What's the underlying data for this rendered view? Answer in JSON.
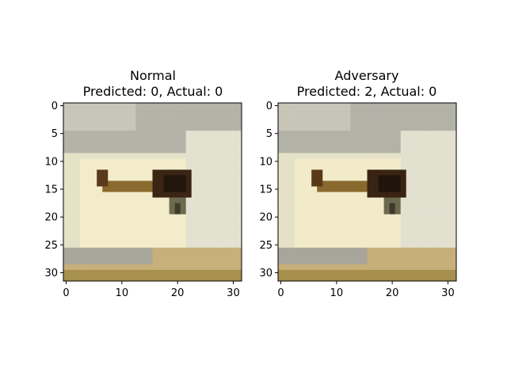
{
  "chart_data": [
    {
      "type": "heatmap",
      "title": "Normal",
      "subtitle": "Predicted: 0, Actual: 0",
      "image_size": 32,
      "xticks": [
        0,
        10,
        20,
        30
      ],
      "yticks": [
        0,
        5,
        10,
        15,
        20,
        25,
        30
      ],
      "xlim": [
        -0.5,
        31.5
      ],
      "ylim": [
        31.5,
        -0.5
      ],
      "scene": {
        "sky_band": {
          "rows": [
            0,
            8
          ],
          "color": "#b4b3a8"
        },
        "sky_highlight": {
          "rows": [
            0,
            4
          ],
          "cols": [
            0,
            12
          ],
          "color": "#c8c6b8"
        },
        "background": "#e6e2c8",
        "bright_patch": {
          "rows": [
            10,
            25
          ],
          "cols": [
            3,
            22
          ],
          "color": "#f2eccb"
        },
        "right_wall": {
          "rows": [
            5,
            27
          ],
          "cols": [
            22,
            31
          ],
          "color": "#e3e1d0"
        },
        "ground_band": {
          "rows": [
            26,
            31
          ],
          "color": "#c7b07a"
        },
        "ground_dark": {
          "rows": [
            30,
            31
          ],
          "color": "#a8904f"
        },
        "ground_shadow": {
          "rows": [
            26,
            28
          ],
          "cols": [
            0,
            15
          ],
          "color": "#a9a79b"
        },
        "shaft": {
          "row_start": 14,
          "row_end": 15,
          "col_start": 7,
          "col_end": 17,
          "color": "#8a6a2e"
        },
        "tail_dot": {
          "rows": [
            12,
            14
          ],
          "cols": [
            6,
            7
          ],
          "color": "#5a3a1a"
        },
        "body": {
          "rows": [
            12,
            16
          ],
          "cols": [
            16,
            22
          ],
          "color": "#3a2414"
        },
        "body_core": {
          "rows": [
            13,
            15
          ],
          "cols": [
            18,
            21
          ],
          "color": "#21150c"
        },
        "leg": {
          "rows": [
            17,
            19
          ],
          "cols": [
            19,
            21
          ],
          "color": "#6e6a50"
        },
        "leg_dark": {
          "rows": [
            18,
            19
          ],
          "cols": [
            20,
            20
          ],
          "color": "#3f3b2a"
        }
      }
    },
    {
      "type": "heatmap",
      "title": "Adversary",
      "subtitle": "Predicted: 2, Actual: 0",
      "image_size": 32,
      "xticks": [
        0,
        10,
        20,
        30
      ],
      "yticks": [
        0,
        5,
        10,
        15,
        20,
        25,
        30
      ],
      "xlim": [
        -0.5,
        31.5
      ],
      "ylim": [
        31.5,
        -0.5
      ],
      "scene": {
        "sky_band": {
          "rows": [
            0,
            8
          ],
          "color": "#b3b2a7"
        },
        "sky_highlight": {
          "rows": [
            0,
            4
          ],
          "cols": [
            0,
            12
          ],
          "color": "#c7c5b7"
        },
        "background": "#e5e1c7",
        "bright_patch": {
          "rows": [
            10,
            25
          ],
          "cols": [
            3,
            22
          ],
          "color": "#f1ebca"
        },
        "right_wall": {
          "rows": [
            5,
            27
          ],
          "cols": [
            22,
            31
          ],
          "color": "#e2e0cf"
        },
        "ground_band": {
          "rows": [
            26,
            31
          ],
          "color": "#c6af79"
        },
        "ground_dark": {
          "rows": [
            30,
            31
          ],
          "color": "#a78f4e"
        },
        "ground_shadow": {
          "rows": [
            26,
            28
          ],
          "cols": [
            0,
            15
          ],
          "color": "#a8a69a"
        },
        "shaft": {
          "row_start": 14,
          "row_end": 15,
          "col_start": 7,
          "col_end": 17,
          "color": "#89692d"
        },
        "tail_dot": {
          "rows": [
            12,
            14
          ],
          "cols": [
            6,
            7
          ],
          "color": "#593919"
        },
        "body": {
          "rows": [
            12,
            16
          ],
          "cols": [
            16,
            22
          ],
          "color": "#392313"
        },
        "body_core": {
          "rows": [
            13,
            15
          ],
          "cols": [
            18,
            21
          ],
          "color": "#20140b"
        },
        "leg": {
          "rows": [
            17,
            19
          ],
          "cols": [
            19,
            21
          ],
          "color": "#6d694f"
        },
        "leg_dark": {
          "rows": [
            18,
            19
          ],
          "cols": [
            20,
            20
          ],
          "color": "#3e3a29"
        }
      }
    }
  ]
}
